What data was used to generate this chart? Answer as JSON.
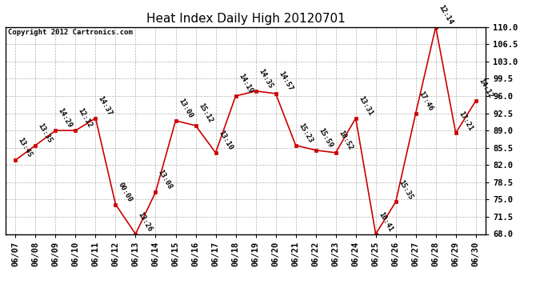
{
  "title": "Heat Index Daily High 20120701",
  "copyright": "Copyright 2012 Cartronics.com",
  "dates": [
    "06/07",
    "06/08",
    "06/09",
    "06/10",
    "06/11",
    "06/12",
    "06/13",
    "06/14",
    "06/15",
    "06/16",
    "06/17",
    "06/18",
    "06/19",
    "06/20",
    "06/21",
    "06/22",
    "06/23",
    "06/24",
    "06/25",
    "06/26",
    "06/27",
    "06/28",
    "06/29",
    "06/30"
  ],
  "values": [
    83.0,
    86.0,
    89.0,
    89.0,
    91.5,
    74.0,
    68.0,
    76.5,
    91.0,
    90.0,
    84.5,
    96.0,
    97.0,
    96.5,
    86.0,
    85.0,
    84.5,
    91.5,
    68.0,
    74.5,
    92.5,
    110.0,
    88.5,
    95.0
  ],
  "labels": [
    "13:45",
    "13:35",
    "14:29",
    "12:12",
    "14:37",
    "00:00",
    "13:26",
    "13:08",
    "13:00",
    "15:12",
    "13:10",
    "14:19",
    "14:35",
    "14:57",
    "15:23",
    "15:59",
    "10:52",
    "13:31",
    "10:41",
    "15:35",
    "17:46",
    "12:14",
    "17:21",
    "14:12"
  ],
  "ylim": [
    68.0,
    110.0
  ],
  "yticks": [
    68.0,
    71.5,
    75.0,
    78.5,
    82.0,
    85.5,
    89.0,
    92.5,
    96.0,
    99.5,
    103.0,
    106.5,
    110.0
  ],
  "line_color": "#cc0000",
  "marker_color": "#cc0000",
  "bg_color": "#ffffff",
  "grid_color": "#aaaaaa",
  "title_fontsize": 11,
  "label_fontsize": 6.5,
  "tick_fontsize": 7.5,
  "copyright_fontsize": 6.5
}
